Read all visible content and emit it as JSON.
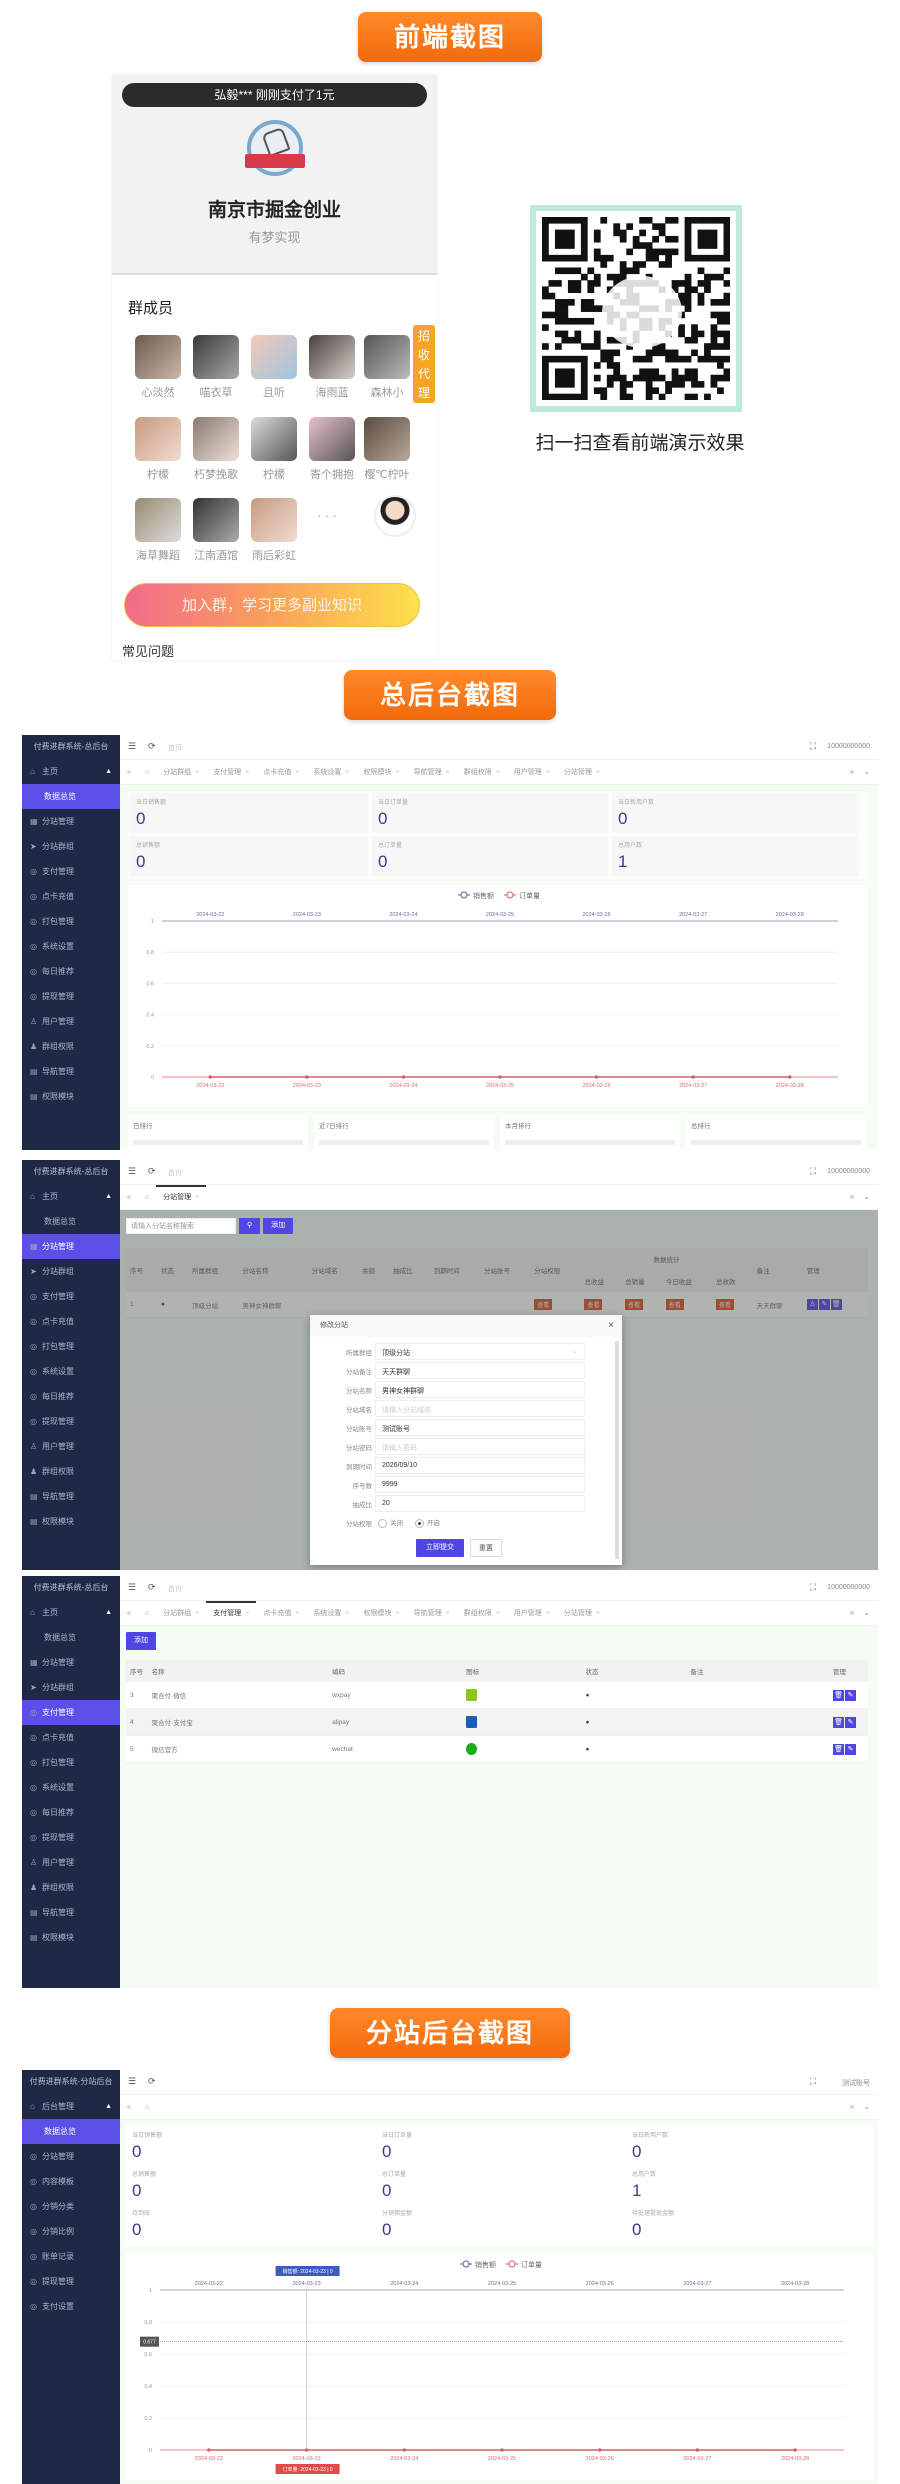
{
  "banners": {
    "frontend": "前端截图",
    "admin": "总后台截图",
    "substation": "分站后台截图"
  },
  "frontend": {
    "notice": "弘毅*** 刚刚支付了1元",
    "group_name": "南京市掘金创业",
    "group_slogan": "有梦实现",
    "members_title": "群成员",
    "members": [
      "心淡然",
      "喵衣草",
      "且听",
      "海雨蓝",
      "森林小",
      "柠檬",
      "朽梦挽歌",
      "柠檬",
      "寄个拥抱",
      "樱℃柠叶",
      "海草舞蹈",
      "江南酒馆",
      "雨后彩虹"
    ],
    "more": "···",
    "agent_badge": "招收代理",
    "join_button": "加入群，学习更多副业知识",
    "faq_title": "常见问题",
    "qr_caption": "扫一扫查看前端演示效果"
  },
  "colors": {
    "sidebar": "#1f2945",
    "accent": "#5b4fe6",
    "banner": "#f27a1a",
    "series_sales": "#5a5f9a",
    "series_orders": "#e05a5a"
  },
  "screens": [
    {
      "sidebar_title": "付费进群系统-总后台",
      "home_label": "首页",
      "user": "10000000000",
      "sidebar": [
        {
          "label": "主页",
          "icon": "home",
          "caret": true
        },
        {
          "label": "数据总览",
          "icon": "none",
          "sub": true,
          "active": true
        },
        {
          "label": "分站管理",
          "icon": "grid"
        },
        {
          "label": "分站群组",
          "icon": "send"
        },
        {
          "label": "支付管理",
          "icon": "circle"
        },
        {
          "label": "点卡充值",
          "icon": "circle"
        },
        {
          "label": "打包管理",
          "icon": "circle"
        },
        {
          "label": "系统设置",
          "icon": "circle"
        },
        {
          "label": "每日推荐",
          "icon": "circle"
        },
        {
          "label": "提现管理",
          "icon": "circle"
        },
        {
          "label": "用户管理",
          "icon": "user"
        },
        {
          "label": "群组权限",
          "icon": "users"
        },
        {
          "label": "导航管理",
          "icon": "nav"
        },
        {
          "label": "权限模块",
          "icon": "nav"
        }
      ],
      "tabs": [
        "分站群组",
        "支付管理",
        "点卡充值",
        "系统设置",
        "权限模块",
        "导航管理",
        "群组权限",
        "用户管理",
        "分站管理"
      ],
      "active_tab": -1,
      "stats": [
        {
          "label": "当日销售额",
          "value": "0"
        },
        {
          "label": "当日订单量",
          "value": "0"
        },
        {
          "label": "当日新用户数",
          "value": "0"
        },
        {
          "label": "总销售额",
          "value": "0"
        },
        {
          "label": "总订单量",
          "value": "0"
        },
        {
          "label": "总用户数",
          "value": "1"
        }
      ],
      "rankings": [
        "日排行",
        "近7日排行",
        "本月排行",
        "总排行"
      ]
    },
    {
      "sidebar_title": "付费进群系统-总后台",
      "home_label": "首页",
      "user": "10000000000",
      "sidebar": [
        {
          "label": "主页",
          "icon": "home",
          "caret": true
        },
        {
          "label": "数据总览",
          "icon": "none",
          "sub": true
        },
        {
          "label": "分站管理",
          "icon": "grid",
          "active": true
        },
        {
          "label": "分站群组",
          "icon": "send"
        },
        {
          "label": "支付管理",
          "icon": "circle"
        },
        {
          "label": "点卡充值",
          "icon": "circle"
        },
        {
          "label": "打包管理",
          "icon": "circle"
        },
        {
          "label": "系统设置",
          "icon": "circle"
        },
        {
          "label": "每日推荐",
          "icon": "circle"
        },
        {
          "label": "提现管理",
          "icon": "circle"
        },
        {
          "label": "用户管理",
          "icon": "user"
        },
        {
          "label": "群组权限",
          "icon": "users"
        },
        {
          "label": "导航管理",
          "icon": "nav"
        },
        {
          "label": "权限模块",
          "icon": "nav"
        }
      ],
      "tabs": [
        "分站管理"
      ],
      "active_tab": 0,
      "search_placeholder": "请输入分站名称搜索",
      "add_label": "添加",
      "table": {
        "group_header": "数据统计",
        "headers": [
          "序号",
          "状态",
          "所属群组",
          "分站名称",
          "分站域名",
          "余额",
          "抽成比",
          "到期时间",
          "分站账号",
          "分站权限",
          "总收益",
          "总销量",
          "今日收益",
          "总收款",
          "备注",
          "管理"
        ],
        "rows": [
          [
            "1",
            "●",
            "顶级分站",
            "男神女神群聊",
            "",
            "",
            "",
            "",
            "",
            "查看",
            "查看",
            "查看",
            "查看",
            "查看",
            "天天群聊"
          ]
        ]
      },
      "modal": {
        "title": "修改分站",
        "fields": [
          {
            "label": "所属群组",
            "value": "顶级分站",
            "select": true
          },
          {
            "label": "分站备注",
            "value": "天天群聊"
          },
          {
            "label": "分站名称",
            "value": "男神女神群聊"
          },
          {
            "label": "分站域名",
            "placeholder": "请输入分站域名"
          },
          {
            "label": "分站账号",
            "value": "测试账号"
          },
          {
            "label": "分站密码",
            "placeholder": "请输入密码"
          },
          {
            "label": "到期时间",
            "value": "2026/09/10"
          },
          {
            "label": "序号数",
            "value": "9999"
          },
          {
            "label": "抽成比",
            "value": "20"
          }
        ],
        "permission_label": "分站权限",
        "radio_off": "关闭",
        "radio_on": "开启",
        "selected": "开启",
        "submit": "立即提交",
        "reset": "重置"
      }
    },
    {
      "sidebar_title": "付费进群系统-总后台",
      "home_label": "首页",
      "user": "10000000000",
      "sidebar": [
        {
          "label": "主页",
          "icon": "home",
          "caret": true
        },
        {
          "label": "数据总览",
          "icon": "none",
          "sub": true
        },
        {
          "label": "分站管理",
          "icon": "grid"
        },
        {
          "label": "分站群组",
          "icon": "send"
        },
        {
          "label": "支付管理",
          "icon": "circle",
          "active": true
        },
        {
          "label": "点卡充值",
          "icon": "circle"
        },
        {
          "label": "打包管理",
          "icon": "circle"
        },
        {
          "label": "系统设置",
          "icon": "circle"
        },
        {
          "label": "每日推荐",
          "icon": "circle"
        },
        {
          "label": "提现管理",
          "icon": "circle"
        },
        {
          "label": "用户管理",
          "icon": "user"
        },
        {
          "label": "群组权限",
          "icon": "users"
        },
        {
          "label": "导航管理",
          "icon": "nav"
        },
        {
          "label": "权限模块",
          "icon": "nav"
        }
      ],
      "tabs": [
        "分站群组",
        "支付管理",
        "点卡充值",
        "系统设置",
        "权限模块",
        "导航管理",
        "群组权限",
        "用户管理",
        "分站管理"
      ],
      "active_tab": 1,
      "add_label": "添加",
      "table": {
        "headers": [
          "序号",
          "名称",
          "编码",
          "图标",
          "状态",
          "备注",
          "管理"
        ],
        "rows": [
          {
            "cells": [
              "3",
              "聚合付·微信",
              "wxpay"
            ],
            "icon": "green-pay",
            "status": "●"
          },
          {
            "cells": [
              "4",
              "聚合付·支付宝",
              "alipay"
            ],
            "icon": "blue-pay",
            "status": "●"
          },
          {
            "cells": [
              "5",
              "微信官方",
              "wechat"
            ],
            "icon": "wechat-check",
            "status": "●"
          }
        ]
      }
    },
    {
      "sidebar_title": "付费进群系统-分站后台",
      "home_label": "",
      "user": "测试账号",
      "sidebar": [
        {
          "label": "后台管理",
          "icon": "home",
          "caret": true
        },
        {
          "label": "数据总览",
          "icon": "none",
          "sub": true,
          "active": true
        },
        {
          "label": "分站管理",
          "icon": "circle"
        },
        {
          "label": "内容模板",
          "icon": "circle"
        },
        {
          "label": "分销分类",
          "icon": "circle"
        },
        {
          "label": "分销比例",
          "icon": "circle"
        },
        {
          "label": "账单记录",
          "icon": "circle"
        },
        {
          "label": "提现管理",
          "icon": "circle"
        },
        {
          "label": "支付设置",
          "icon": "circle"
        }
      ],
      "tabs": [],
      "active_tab": -1,
      "stats": [
        {
          "label": "当日销售额",
          "value": "0"
        },
        {
          "label": "当日订单量",
          "value": "0"
        },
        {
          "label": "当日新用户数",
          "value": "0"
        },
        {
          "label": "总销售额",
          "value": "0"
        },
        {
          "label": "总订单量",
          "value": "0"
        },
        {
          "label": "总用户数",
          "value": "1"
        },
        {
          "label": "待到账",
          "value": "0"
        },
        {
          "label": "分销佣金额",
          "value": "0"
        },
        {
          "label": "待处理提现金额",
          "value": "0"
        }
      ],
      "tooltip": {
        "top": "销售额: 2024-03-23 | 0",
        "bottom": "订单量: 2024-03-23 | 0",
        "y_pointer": "0.677"
      }
    }
  ],
  "chart_data": [
    {
      "type": "line",
      "x": [
        "2024-03-22",
        "2024-03-23",
        "2024-03-24",
        "2024-03-25",
        "2024-03-26",
        "2024-03-27",
        "2024-03-28"
      ],
      "series": [
        {
          "name": "销售额",
          "values": [
            0,
            0,
            0,
            0,
            0,
            0,
            0
          ],
          "color": "#5a5f9a"
        },
        {
          "name": "订单量",
          "values": [
            0,
            0,
            0,
            0,
            0,
            0,
            0
          ],
          "color": "#e05a5a"
        }
      ],
      "ylim": [
        0,
        1
      ],
      "yticks": [
        "0",
        "0.2",
        "0.4",
        "0.6",
        "0.8",
        "1"
      ],
      "grid": true,
      "legend": "top-center"
    },
    {
      "type": "line",
      "x": [
        "2024-03-22",
        "2024-03-23",
        "2024-03-24",
        "2024-03-25",
        "2024-03-26",
        "2024-03-27",
        "2024-03-28"
      ],
      "series": [
        {
          "name": "销售额",
          "values": [
            0,
            0,
            0,
            0,
            0,
            0,
            0
          ],
          "color": "#5a5f9a"
        },
        {
          "name": "订单量",
          "values": [
            0,
            0,
            0,
            0,
            0,
            0,
            0
          ],
          "color": "#e05a5a"
        }
      ],
      "ylim": [
        0,
        1
      ],
      "yticks": [
        "0",
        "0.2",
        "0.4",
        "0.6",
        "0.8",
        "1"
      ],
      "grid": true,
      "legend": "top-center"
    }
  ]
}
